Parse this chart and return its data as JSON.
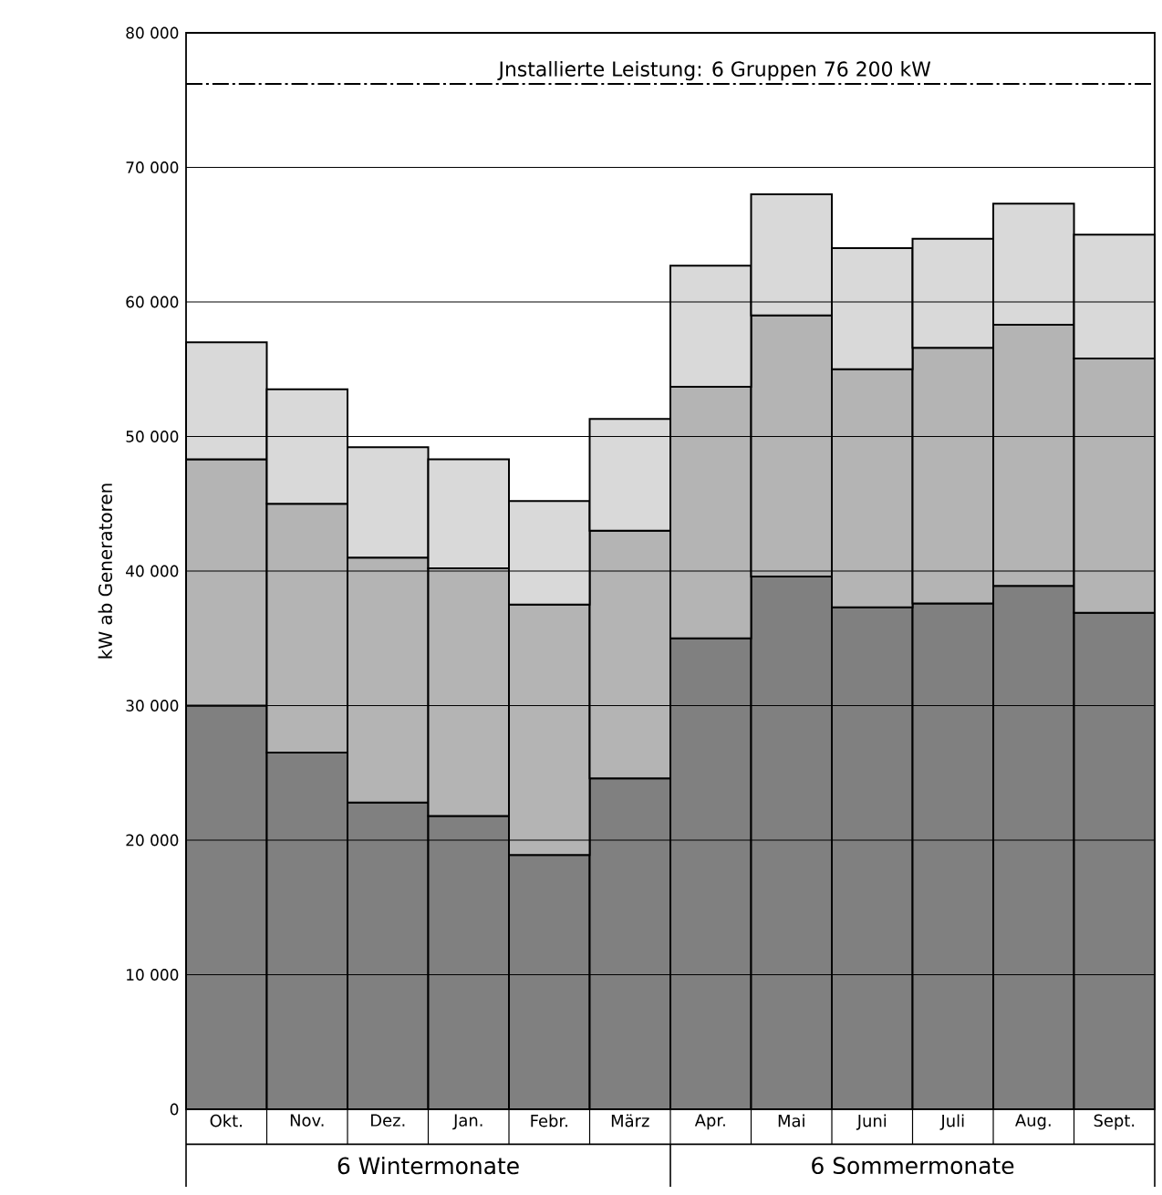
{
  "chart_data": {
    "type": "bar",
    "stacked": true,
    "ylabel": "kW ab Generatoren",
    "categories": [
      "Okt.",
      "Nov.",
      "Dez.",
      "Jan.",
      "Febr.",
      "März",
      "Apr.",
      "Mai",
      "Juni",
      "Juli",
      "Aug.",
      "Sept."
    ],
    "series": [
      {
        "color": "#808080",
        "values": [
          30000,
          26500,
          22800,
          21800,
          18900,
          24600,
          35000,
          39600,
          37300,
          37600,
          38900,
          36900
        ]
      },
      {
        "color": "#b4b4b4",
        "values": [
          18300,
          18500,
          18200,
          18400,
          18600,
          18400,
          18700,
          19400,
          17700,
          19000,
          19400,
          18900
        ]
      },
      {
        "color": "#d9d9d9",
        "values": [
          8700,
          8500,
          8200,
          8100,
          7700,
          8300,
          9000,
          9000,
          9000,
          8100,
          9000,
          9200
        ]
      }
    ],
    "ylim": [
      0,
      80000
    ],
    "yticks": [
      0,
      {
        "value": 10000,
        "label": "10 000"
      },
      {
        "value": 20000,
        "label": "20 000"
      },
      {
        "value": 30000,
        "label": "30 000"
      },
      {
        "value": 40000,
        "label": "40 000"
      },
      {
        "value": 50000,
        "label": "50 000"
      },
      {
        "value": 60000,
        "label": "60 000"
      },
      {
        "value": 70000,
        "label": "70 000"
      },
      {
        "value": 80000,
        "label": "80 000"
      }
    ],
    "grid": "y",
    "ref_lines": [
      {
        "axis": "y",
        "value": 76200,
        "label": "Jnstallierte Leistung: 6 Gruppen 76 200 kW",
        "line_style": "dashdot",
        "color": "#000000"
      }
    ],
    "annotations": [
      "6 Wintermonate",
      "6 Sommermonate"
    ]
  }
}
